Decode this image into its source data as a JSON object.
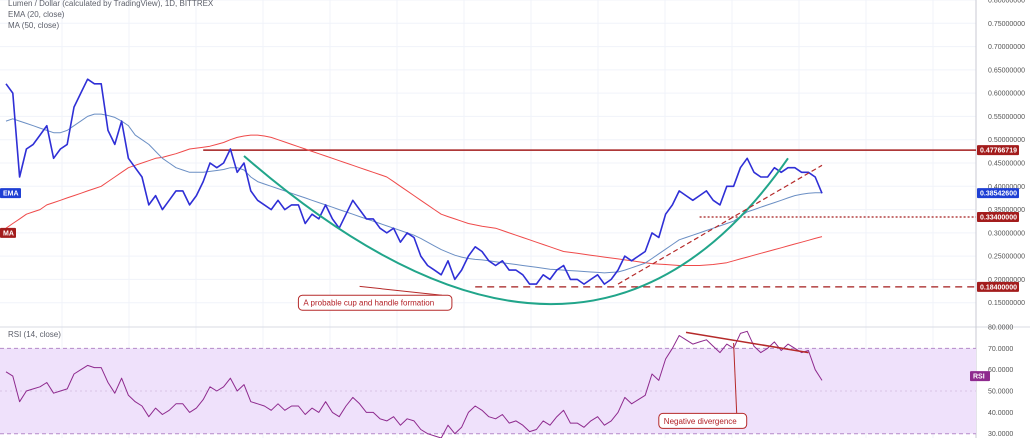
{
  "legends": {
    "main": "Lumen / Dollar (calculated by TradingView), 1D, BITTREX",
    "ema": "EMA (20, close)",
    "ma": "MA (50, close)",
    "rsi": "RSI (14, close)"
  },
  "colors": {
    "price": "#2f2fd6",
    "ema": "#6b8fc4",
    "ma": "#ef4a4a",
    "cup": "#21a58a",
    "hline": "#a31c1c",
    "trend": "#b52a2a",
    "rsi": "#8e2a8e",
    "rsi_band": "#efe1fb",
    "tag_price": "#1e3fd4",
    "tag_red": "#a31c1c",
    "tag_rsi": "#8e2a8e"
  },
  "chart_data": [
    {
      "type": "line",
      "title": "Lumen / Dollar (calculated by TradingView), 1D, BITTREX",
      "ylim": [
        0.1,
        0.8
      ],
      "y_ticks": [
        "0.15000000",
        "0.20000000",
        "0.25000000",
        "0.30000000",
        "0.35000000",
        "0.40000000",
        "0.45000000",
        "0.50000000",
        "0.55000000",
        "0.60000000",
        "0.65000000",
        "0.70000000",
        "0.75000000",
        "0.80000000"
      ],
      "x": [
        0,
        1,
        2,
        3,
        4,
        5,
        6,
        7,
        8,
        9,
        10,
        11,
        12,
        13,
        14,
        15,
        16,
        17,
        18,
        19,
        20,
        21,
        22,
        23,
        24,
        25,
        26,
        27,
        28,
        29,
        30,
        31,
        32,
        33,
        34,
        35,
        36,
        37,
        38,
        39,
        40,
        41,
        42,
        43,
        44,
        45,
        46,
        47,
        48,
        49,
        50,
        51,
        52,
        53,
        54,
        55,
        56,
        57,
        58,
        59,
        60,
        61,
        62,
        63,
        64,
        65,
        66,
        67,
        68,
        69,
        70,
        71,
        72,
        73,
        74,
        75,
        76,
        77,
        78,
        79,
        80,
        81,
        82,
        83,
        84,
        85,
        86,
        87,
        88,
        89,
        90,
        91,
        92,
        93,
        94,
        95,
        96,
        97,
        98,
        99,
        100,
        101,
        102,
        103,
        104,
        105,
        106,
        107,
        108,
        109,
        110,
        111,
        112,
        113,
        114,
        115,
        116,
        117,
        118,
        119,
        120
      ],
      "series": [
        {
          "name": "Lumen / Dollar",
          "values": [
            0.62,
            0.6,
            0.42,
            0.48,
            0.49,
            0.51,
            0.53,
            0.46,
            0.48,
            0.49,
            0.57,
            0.6,
            0.63,
            0.62,
            0.62,
            0.52,
            0.49,
            0.54,
            0.46,
            0.44,
            0.42,
            0.36,
            0.38,
            0.35,
            0.37,
            0.39,
            0.39,
            0.36,
            0.38,
            0.41,
            0.45,
            0.44,
            0.45,
            0.48,
            0.43,
            0.45,
            0.39,
            0.37,
            0.36,
            0.35,
            0.37,
            0.35,
            0.36,
            0.36,
            0.32,
            0.34,
            0.33,
            0.36,
            0.33,
            0.31,
            0.34,
            0.37,
            0.35,
            0.33,
            0.33,
            0.31,
            0.3,
            0.31,
            0.28,
            0.3,
            0.29,
            0.25,
            0.23,
            0.22,
            0.21,
            0.24,
            0.2,
            0.22,
            0.25,
            0.27,
            0.26,
            0.24,
            0.23,
            0.24,
            0.22,
            0.22,
            0.21,
            0.19,
            0.19,
            0.21,
            0.2,
            0.22,
            0.23,
            0.2,
            0.2,
            0.19,
            0.2,
            0.21,
            0.19,
            0.2,
            0.22,
            0.25,
            0.24,
            0.25,
            0.26,
            0.3,
            0.29,
            0.34,
            0.36,
            0.39,
            0.38,
            0.37,
            0.38,
            0.39,
            0.37,
            0.36,
            0.4,
            0.4,
            0.44,
            0.46,
            0.43,
            0.42,
            0.42,
            0.44,
            0.43,
            0.44,
            0.44,
            0.43,
            0.43,
            0.42,
            0.385
          ]
        },
        {
          "name": "EMA (20, close)",
          "values": [
            0.54,
            0.545,
            0.54,
            0.535,
            0.53,
            0.525,
            0.52,
            0.515,
            0.515,
            0.52,
            0.53,
            0.54,
            0.55,
            0.555,
            0.555,
            0.552,
            0.548,
            0.54,
            0.53,
            0.51,
            0.5,
            0.49,
            0.475,
            0.46,
            0.45,
            0.44,
            0.435,
            0.43,
            0.43,
            0.43,
            0.432,
            0.434,
            0.436,
            0.44,
            0.44,
            0.435,
            0.42,
            0.41,
            0.405,
            0.4,
            0.395,
            0.39,
            0.385,
            0.38,
            0.375,
            0.37,
            0.365,
            0.36,
            0.355,
            0.35,
            0.345,
            0.34,
            0.335,
            0.33,
            0.325,
            0.32,
            0.315,
            0.31,
            0.305,
            0.3,
            0.295,
            0.288,
            0.28,
            0.272,
            0.264,
            0.258,
            0.252,
            0.248,
            0.245,
            0.243,
            0.242,
            0.24,
            0.238,
            0.236,
            0.234,
            0.232,
            0.23,
            0.228,
            0.226,
            0.224,
            0.222,
            0.221,
            0.22,
            0.219,
            0.218,
            0.217,
            0.216,
            0.215,
            0.214,
            0.215,
            0.216,
            0.22,
            0.225,
            0.23,
            0.235,
            0.245,
            0.255,
            0.265,
            0.275,
            0.285,
            0.29,
            0.295,
            0.3,
            0.305,
            0.31,
            0.315,
            0.32,
            0.325,
            0.335,
            0.345,
            0.35,
            0.355,
            0.36,
            0.365,
            0.37,
            0.375,
            0.38,
            0.383,
            0.385,
            0.386,
            0.386
          ]
        },
        {
          "name": "MA (50, close)",
          "values": [
            0.31,
            0.32,
            0.33,
            0.34,
            0.345,
            0.35,
            0.36,
            0.365,
            0.37,
            0.375,
            0.38,
            0.385,
            0.39,
            0.395,
            0.4,
            0.41,
            0.42,
            0.43,
            0.44,
            0.445,
            0.45,
            0.455,
            0.46,
            0.462,
            0.466,
            0.47,
            0.475,
            0.48,
            0.482,
            0.484,
            0.486,
            0.49,
            0.494,
            0.5,
            0.505,
            0.508,
            0.51,
            0.51,
            0.508,
            0.505,
            0.5,
            0.495,
            0.49,
            0.485,
            0.48,
            0.475,
            0.47,
            0.465,
            0.46,
            0.455,
            0.45,
            0.445,
            0.44,
            0.435,
            0.43,
            0.425,
            0.42,
            0.41,
            0.4,
            0.39,
            0.38,
            0.37,
            0.36,
            0.35,
            0.34,
            0.335,
            0.33,
            0.325,
            0.32,
            0.317,
            0.314,
            0.312,
            0.31,
            0.305,
            0.3,
            0.295,
            0.29,
            0.285,
            0.28,
            0.275,
            0.27,
            0.265,
            0.26,
            0.258,
            0.256,
            0.254,
            0.252,
            0.25,
            0.248,
            0.246,
            0.244,
            0.242,
            0.24,
            0.238,
            0.236,
            0.234,
            0.233,
            0.232,
            0.231,
            0.23,
            0.23,
            0.23,
            0.23,
            0.231,
            0.232,
            0.234,
            0.236,
            0.24,
            0.244,
            0.248,
            0.252,
            0.256,
            0.26,
            0.264,
            0.268,
            0.272,
            0.276,
            0.28,
            0.284,
            0.288,
            0.292
          ]
        }
      ],
      "price_tags": [
        {
          "label": "0.47766719",
          "value": 0.47766719,
          "kind": "red"
        },
        {
          "label": "0.38542600",
          "value": 0.385426,
          "kind": "price"
        },
        {
          "label": "0.33400000",
          "value": 0.334,
          "kind": "red"
        },
        {
          "label": "0.18400000",
          "value": 0.184,
          "kind": "red"
        }
      ],
      "series_tags": [
        {
          "label": "EMA",
          "value": 0.385426
        },
        {
          "label": "MA",
          "value": 0.3
        }
      ],
      "levels": [
        {
          "value": 0.47766719,
          "x_from": 29,
          "style": "solid"
        },
        {
          "value": 0.334,
          "x_from": 102,
          "style": "dotted"
        },
        {
          "value": 0.184,
          "x_from": 69,
          "style": "dashed"
        }
      ],
      "cup_curve": {
        "x": [
          35,
          80,
          115
        ],
        "y": [
          0.465,
          0.147,
          0.46
        ]
      },
      "handle_trend": {
        "x": [
          90,
          120
        ],
        "y": [
          0.19,
          0.445
        ]
      },
      "annotations": [
        {
          "text": "A probable cup and handle formation",
          "x": 43,
          "y": 0.15,
          "arrow_to_x": 52,
          "arrow_to_y": 0.185
        }
      ]
    },
    {
      "type": "line",
      "title": "RSI (14, close)",
      "ylim": [
        28,
        80
      ],
      "y_ticks": [
        "30.0000",
        "40.0000",
        "50.0000",
        "60.0000",
        "70.0000",
        "80.0000"
      ],
      "band": [
        30,
        70
      ],
      "x": [
        0,
        1,
        2,
        3,
        4,
        5,
        6,
        7,
        8,
        9,
        10,
        11,
        12,
        13,
        14,
        15,
        16,
        17,
        18,
        19,
        20,
        21,
        22,
        23,
        24,
        25,
        26,
        27,
        28,
        29,
        30,
        31,
        32,
        33,
        34,
        35,
        36,
        37,
        38,
        39,
        40,
        41,
        42,
        43,
        44,
        45,
        46,
        47,
        48,
        49,
        50,
        51,
        52,
        53,
        54,
        55,
        56,
        57,
        58,
        59,
        60,
        61,
        62,
        63,
        64,
        65,
        66,
        67,
        68,
        69,
        70,
        71,
        72,
        73,
        74,
        75,
        76,
        77,
        78,
        79,
        80,
        81,
        82,
        83,
        84,
        85,
        86,
        87,
        88,
        89,
        90,
        91,
        92,
        93,
        94,
        95,
        96,
        97,
        98,
        99,
        100,
        101,
        102,
        103,
        104,
        105,
        106,
        107,
        108,
        109,
        110,
        111,
        112,
        113,
        114,
        115,
        116,
        117,
        118,
        119,
        120
      ],
      "series": [
        {
          "name": "RSI",
          "values": [
            59,
            57,
            45,
            50,
            51,
            52,
            54,
            49,
            50,
            51,
            58,
            60,
            62,
            61,
            61,
            54,
            49,
            56,
            48,
            45,
            43,
            38,
            42,
            39,
            41,
            44,
            44,
            40,
            42,
            46,
            52,
            50,
            52,
            56,
            50,
            53,
            45,
            44,
            43,
            41,
            44,
            41,
            43,
            43,
            39,
            42,
            40,
            45,
            40,
            38,
            43,
            47,
            44,
            40,
            40,
            37,
            36,
            38,
            34,
            37,
            36,
            32,
            30,
            29,
            28,
            34,
            30,
            33,
            40,
            43,
            41,
            38,
            37,
            39,
            35,
            36,
            34,
            31,
            32,
            36,
            34,
            38,
            41,
            35,
            35,
            33,
            36,
            38,
            34,
            36,
            40,
            47,
            44,
            46,
            48,
            58,
            55,
            65,
            70,
            76,
            74,
            72,
            73,
            74,
            71,
            68,
            72,
            70,
            77,
            78,
            71,
            68,
            70,
            73,
            69,
            72,
            70,
            68,
            69,
            60,
            55
          ]
        }
      ],
      "series_tags": [
        {
          "label": "RSI",
          "value": 57
        }
      ],
      "divergence_line": {
        "x": [
          100,
          118
        ],
        "y": [
          77.5,
          68
        ]
      },
      "annotations": [
        {
          "text": "Negative divergence",
          "x": 96,
          "y": 36,
          "arrow_to_x": 107,
          "arrow_to_y": 72.5
        }
      ]
    }
  ]
}
